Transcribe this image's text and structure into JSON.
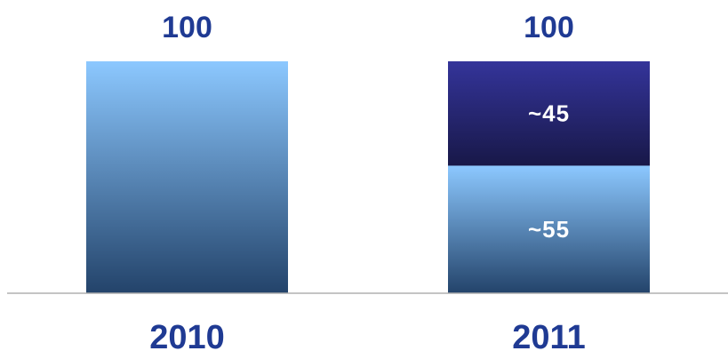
{
  "chart_data": {
    "type": "bar",
    "stacked": true,
    "categories": [
      "2010",
      "2011"
    ],
    "totals": [
      100,
      100
    ],
    "total_labels": [
      "100",
      "100"
    ],
    "series": [
      {
        "values": [
          100,
          55
        ],
        "value_labels": [
          "",
          "~55"
        ],
        "color_top": "#8cc8ff",
        "color_bottom": "#23436a"
      },
      {
        "values": [
          0,
          45
        ],
        "value_labels": [
          "",
          "~45"
        ],
        "color_top": "#34349a",
        "color_bottom": "#181848"
      }
    ],
    "ylim": [
      0,
      100
    ],
    "grid": false,
    "legend": "none",
    "colors": {
      "label": "#1f3a93",
      "segment_text": "#ffffff",
      "axis_line": "#b0b0b0"
    }
  }
}
